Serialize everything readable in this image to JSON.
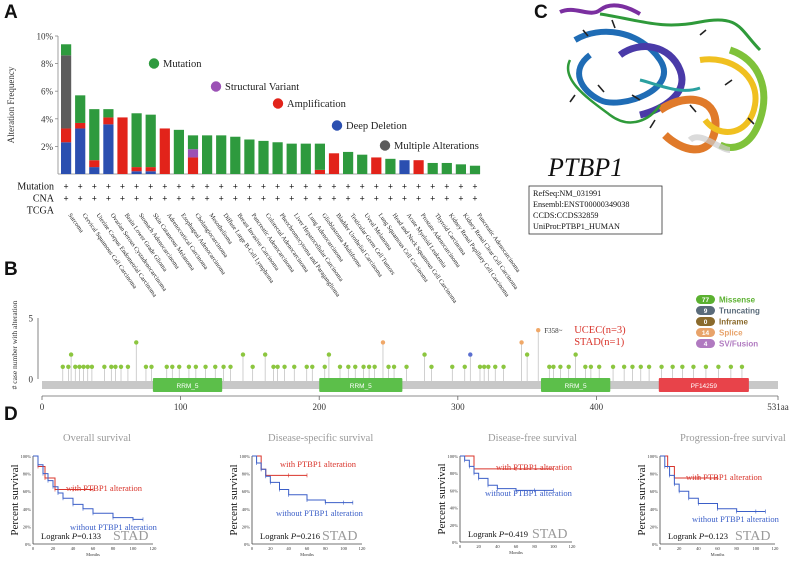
{
  "panels": {
    "a": "A",
    "b": "B",
    "c": "C",
    "d": "D"
  },
  "colors": {
    "mutation": "#2e9a3e",
    "structural_variant": "#9b51b5",
    "amplification": "#e2231a",
    "deep_deletion": "#2b4fb0",
    "multiple": "#5c5c5c",
    "km_with": "#d9342b",
    "km_without": "#3b5fc8"
  },
  "chart_data": [
    {
      "type": "bar",
      "stacked": true,
      "title": "",
      "ylabel": "Alteration Frequency",
      "ylim": [
        0,
        10
      ],
      "yticks": [
        "2%",
        "4%",
        "6%",
        "8%",
        "10%"
      ],
      "ytick_values": [
        2,
        4,
        6,
        8,
        10
      ],
      "row_labels": [
        "Mutation",
        "CNA",
        "TCGA"
      ],
      "row_marker": "+",
      "categories": [
        "Sarcoma",
        "Cervical Squamous Cell Carcinoma",
        "Uterine Corpus Endometrial Carcinoma",
        "Ovarian Serous Cystadenocarcinoma",
        "Brain Lower Grade Glioma",
        "Stomach Adenocarcinoma",
        "Skin Cutaneous Melanoma",
        "Adrenocortical Carcinoma",
        "Esophageal Adenocarcinoma",
        "Cholangiocarcinoma",
        "Mesothelioma",
        "Diffuse Large B-Cell Lymphoma",
        "Breast Invasive Carcinoma",
        "Pancreatic Adenocarcinoma",
        "Colorectal Adenocarcinoma",
        "Pheochromocytoma and Paraganglioma",
        "Liver Hepatocellular Carcinoma",
        "Lung Adenocarcinoma",
        "Glioblastoma Multiforme",
        "Bladder Urothelial Carcinoma",
        "Testicular Germ Cell Tumors",
        "Uveal Melanoma",
        "Lung Squamous Cell Carcinoma",
        "Head and Neck Squamous Cell Carcinoma",
        "Acute Myeloid Leukemia",
        "Prostate Adenocarcinoma",
        "Thyroid Carcinoma",
        "Kidney Renal Papillary Cell Carcinoma",
        "Kidney Renal Clear Cell Carcinoma",
        "Pancreatic Adenocarcinoma"
      ],
      "series": [
        {
          "name": "Deep Deletion",
          "values": [
            2.3,
            3.3,
            0.5,
            3.6,
            0,
            0.2,
            0.2,
            0,
            0,
            0,
            0,
            0,
            0,
            0,
            0,
            0,
            0,
            0,
            0,
            0,
            0,
            0,
            0,
            0,
            1.0,
            0,
            0,
            0,
            0,
            0
          ]
        },
        {
          "name": "Amplification",
          "values": [
            1.0,
            0.4,
            0.5,
            0.5,
            4.1,
            0.3,
            0.3,
            3.3,
            0,
            1.2,
            0,
            0,
            0,
            0,
            0,
            0,
            0,
            0,
            0.3,
            1.5,
            0,
            0,
            1.2,
            0,
            0,
            1.0,
            0,
            0,
            0,
            0
          ]
        },
        {
          "name": "Multiple Alterations",
          "values": [
            5.3,
            0,
            0,
            0,
            0,
            0,
            0,
            0,
            0,
            0,
            0,
            0,
            0,
            0,
            0,
            0,
            0,
            0,
            0,
            0,
            0,
            0,
            0,
            0,
            0,
            0,
            0,
            0,
            0,
            0
          ]
        },
        {
          "name": "Structural Variant",
          "values": [
            0,
            0,
            0,
            0,
            0,
            0,
            0,
            0,
            0,
            0.6,
            0,
            0,
            0,
            0,
            0,
            0,
            0,
            0,
            0,
            0,
            0,
            0,
            0,
            0,
            0,
            0,
            0,
            0,
            0,
            0
          ]
        },
        {
          "name": "Mutation",
          "values": [
            0.8,
            2.0,
            3.7,
            0.6,
            0,
            3.9,
            3.8,
            0,
            3.2,
            1.0,
            2.8,
            2.8,
            2.7,
            2.5,
            2.4,
            2.3,
            2.2,
            2.2,
            1.9,
            0,
            1.6,
            1.4,
            0,
            1.1,
            0,
            0,
            0.8,
            0.8,
            0.7,
            0.6
          ]
        }
      ],
      "legend": [
        "Mutation",
        "Structural Variant",
        "Amplification",
        "Deep Deletion",
        "Multiple Alterations"
      ]
    },
    {
      "type": "scatter",
      "subtype": "lollipop",
      "ylabel": "# case number with alteration",
      "ylim": [
        0,
        5
      ],
      "yticks": [
        "0",
        "5"
      ],
      "xlim": [
        0,
        531
      ],
      "xticks": [
        "0",
        "100",
        "200",
        "300",
        "400",
        "531aa"
      ],
      "xtick_values": [
        0,
        100,
        200,
        300,
        400,
        531
      ],
      "domains": [
        {
          "label": "RRM_5",
          "start": 80,
          "end": 130
        },
        {
          "label": "RRM_5",
          "start": 200,
          "end": 260
        },
        {
          "label": "RRM_5",
          "start": 360,
          "end": 410
        },
        {
          "label": "PF14259",
          "start": 445,
          "end": 510
        }
      ],
      "hotspot": {
        "label": "F358~",
        "position": 358,
        "count": 4,
        "annotation": [
          "UCEC(n=3)",
          "STAD(n=1)"
        ]
      },
      "stems": [
        {
          "pos": 15,
          "h": 1,
          "c": "g"
        },
        {
          "pos": 19,
          "h": 1,
          "c": "g"
        },
        {
          "pos": 21,
          "h": 2,
          "c": "g"
        },
        {
          "pos": 24,
          "h": 1,
          "c": "g"
        },
        {
          "pos": 27,
          "h": 1,
          "c": "g"
        },
        {
          "pos": 30,
          "h": 1,
          "c": "g"
        },
        {
          "pos": 33,
          "h": 1,
          "c": "g"
        },
        {
          "pos": 36,
          "h": 1,
          "c": "g"
        },
        {
          "pos": 45,
          "h": 1,
          "c": "g"
        },
        {
          "pos": 50,
          "h": 1,
          "c": "g"
        },
        {
          "pos": 53,
          "h": 1,
          "c": "g"
        },
        {
          "pos": 57,
          "h": 1,
          "c": "g"
        },
        {
          "pos": 62,
          "h": 1,
          "c": "g"
        },
        {
          "pos": 68,
          "h": 3,
          "c": "g"
        },
        {
          "pos": 75,
          "h": 1,
          "c": "g"
        },
        {
          "pos": 79,
          "h": 1,
          "c": "g"
        },
        {
          "pos": 90,
          "h": 1,
          "c": "g"
        },
        {
          "pos": 94,
          "h": 1,
          "c": "g"
        },
        {
          "pos": 99,
          "h": 1,
          "c": "g"
        },
        {
          "pos": 106,
          "h": 1,
          "c": "g"
        },
        {
          "pos": 111,
          "h": 1,
          "c": "g"
        },
        {
          "pos": 118,
          "h": 1,
          "c": "g"
        },
        {
          "pos": 125,
          "h": 1,
          "c": "g"
        },
        {
          "pos": 131,
          "h": 1,
          "c": "g"
        },
        {
          "pos": 136,
          "h": 1,
          "c": "g"
        },
        {
          "pos": 145,
          "h": 2,
          "c": "g"
        },
        {
          "pos": 152,
          "h": 1,
          "c": "g"
        },
        {
          "pos": 161,
          "h": 2,
          "c": "g"
        },
        {
          "pos": 167,
          "h": 1,
          "c": "g"
        },
        {
          "pos": 170,
          "h": 1,
          "c": "g"
        },
        {
          "pos": 175,
          "h": 1,
          "c": "g"
        },
        {
          "pos": 182,
          "h": 1,
          "c": "g"
        },
        {
          "pos": 191,
          "h": 1,
          "c": "g"
        },
        {
          "pos": 195,
          "h": 1,
          "c": "g"
        },
        {
          "pos": 204,
          "h": 1,
          "c": "g"
        },
        {
          "pos": 207,
          "h": 2,
          "c": "g"
        },
        {
          "pos": 215,
          "h": 1,
          "c": "g"
        },
        {
          "pos": 221,
          "h": 1,
          "c": "g"
        },
        {
          "pos": 226,
          "h": 1,
          "c": "g"
        },
        {
          "pos": 232,
          "h": 1,
          "c": "g"
        },
        {
          "pos": 236,
          "h": 1,
          "c": "g"
        },
        {
          "pos": 240,
          "h": 1,
          "c": "g"
        },
        {
          "pos": 246,
          "h": 3,
          "c": "o"
        },
        {
          "pos": 250,
          "h": 1,
          "c": "g"
        },
        {
          "pos": 254,
          "h": 1,
          "c": "g"
        },
        {
          "pos": 263,
          "h": 1,
          "c": "g"
        },
        {
          "pos": 276,
          "h": 2,
          "c": "g"
        },
        {
          "pos": 281,
          "h": 1,
          "c": "g"
        },
        {
          "pos": 296,
          "h": 1,
          "c": "g"
        },
        {
          "pos": 305,
          "h": 1,
          "c": "g"
        },
        {
          "pos": 309,
          "h": 2,
          "c": "b"
        },
        {
          "pos": 316,
          "h": 1,
          "c": "g"
        },
        {
          "pos": 319,
          "h": 1,
          "c": "g"
        },
        {
          "pos": 322,
          "h": 1,
          "c": "g"
        },
        {
          "pos": 327,
          "h": 1,
          "c": "g"
        },
        {
          "pos": 333,
          "h": 1,
          "c": "g"
        },
        {
          "pos": 346,
          "h": 3,
          "c": "o"
        },
        {
          "pos": 350,
          "h": 2,
          "c": "g"
        },
        {
          "pos": 358,
          "h": 4,
          "c": "o"
        },
        {
          "pos": 366,
          "h": 1,
          "c": "g"
        },
        {
          "pos": 369,
          "h": 1,
          "c": "g"
        },
        {
          "pos": 374,
          "h": 1,
          "c": "g"
        },
        {
          "pos": 380,
          "h": 1,
          "c": "g"
        },
        {
          "pos": 385,
          "h": 2,
          "c": "g"
        },
        {
          "pos": 392,
          "h": 1,
          "c": "g"
        },
        {
          "pos": 396,
          "h": 1,
          "c": "g"
        },
        {
          "pos": 402,
          "h": 1,
          "c": "g"
        },
        {
          "pos": 412,
          "h": 1,
          "c": "g"
        },
        {
          "pos": 420,
          "h": 1,
          "c": "g"
        },
        {
          "pos": 426,
          "h": 1,
          "c": "g"
        },
        {
          "pos": 432,
          "h": 1,
          "c": "g"
        },
        {
          "pos": 438,
          "h": 1,
          "c": "g"
        },
        {
          "pos": 447,
          "h": 1,
          "c": "g"
        },
        {
          "pos": 455,
          "h": 1,
          "c": "g"
        },
        {
          "pos": 462,
          "h": 1,
          "c": "g"
        },
        {
          "pos": 470,
          "h": 1,
          "c": "g"
        },
        {
          "pos": 479,
          "h": 1,
          "c": "g"
        },
        {
          "pos": 488,
          "h": 1,
          "c": "g"
        },
        {
          "pos": 497,
          "h": 1,
          "c": "g"
        },
        {
          "pos": 505,
          "h": 1,
          "c": "g"
        }
      ],
      "legend": [
        {
          "count": "77",
          "label": "Missense",
          "color": "#5bb130"
        },
        {
          "count": "9",
          "label": "Truncating",
          "color": "#5a6b7a"
        },
        {
          "count": "0",
          "label": "Inframe",
          "color": "#8a6a2c"
        },
        {
          "count": "14",
          "label": "Splice",
          "color": "#e8a36a"
        },
        {
          "count": "4",
          "label": "SV/Fusion",
          "color": "#b07ac0"
        }
      ]
    },
    {
      "type": "line",
      "subtype": "kaplan-meier",
      "title": "Overall survival",
      "ylabel": "Percent survival",
      "xlabel": "Months",
      "yticks": [
        "0%",
        "20%",
        "40%",
        "60%",
        "80%",
        "100%"
      ],
      "xticks": [
        "0",
        "20",
        "40",
        "60",
        "80",
        "100",
        "120"
      ],
      "series": [
        {
          "name": "with PTBP1 alteration",
          "x": [
            0,
            5,
            12,
            22,
            40,
            60
          ],
          "y": [
            100,
            88,
            75,
            62,
            62,
            62
          ]
        },
        {
          "name": "without PTBP1 alteration",
          "x": [
            0,
            5,
            10,
            15,
            20,
            25,
            30,
            40,
            50,
            60,
            80,
            100,
            110
          ],
          "y": [
            100,
            90,
            80,
            72,
            65,
            58,
            52,
            45,
            40,
            35,
            30,
            28,
            28
          ]
        }
      ],
      "logrank_label": "Logrank",
      "p_label": "P",
      "p_value": "=0.133",
      "cohort": "STAD"
    },
    {
      "type": "line",
      "subtype": "kaplan-meier",
      "title": "Disease-specific survival",
      "ylabel": "Percent survival",
      "xlabel": "Months",
      "yticks": [
        "0%",
        "20%",
        "40%",
        "60%",
        "80%",
        "100%"
      ],
      "xticks": [
        "0",
        "20",
        "40",
        "60",
        "80",
        "100",
        "120"
      ],
      "series": [
        {
          "name": "with PTBP1 alteration",
          "x": [
            0,
            10,
            15,
            40,
            60
          ],
          "y": [
            100,
            85,
            78,
            78,
            78
          ]
        },
        {
          "name": "without PTBP1 alteration",
          "x": [
            0,
            5,
            10,
            15,
            20,
            30,
            40,
            60,
            80,
            100,
            110
          ],
          "y": [
            100,
            92,
            85,
            77,
            70,
            62,
            56,
            50,
            47,
            47,
            47
          ]
        }
      ],
      "logrank_label": "Logrank",
      "p_label": "P",
      "p_value": "=0.216",
      "cohort": "STAD"
    },
    {
      "type": "line",
      "subtype": "kaplan-meier",
      "title": "Disease-free survival",
      "ylabel": "Percent survival",
      "xlabel": "Months",
      "yticks": [
        "0%",
        "20%",
        "40%",
        "60%",
        "80%",
        "100%"
      ],
      "xticks": [
        "0",
        "20",
        "40",
        "60",
        "80",
        "100",
        "120"
      ],
      "series": [
        {
          "name": "with PTBP1 alteration",
          "x": [
            0,
            15,
            60,
            100
          ],
          "y": [
            100,
            85,
            85,
            85
          ]
        },
        {
          "name": "without PTBP1 alteration",
          "x": [
            0,
            5,
            10,
            15,
            20,
            30,
            40,
            60,
            80,
            100
          ],
          "y": [
            100,
            95,
            88,
            80,
            74,
            66,
            62,
            60,
            60,
            60
          ]
        }
      ],
      "logrank_label": "Logrank",
      "p_label": "P",
      "p_value": "=0.419",
      "cohort": "STAD"
    },
    {
      "type": "line",
      "subtype": "kaplan-meier",
      "title": "Progression-free survival",
      "ylabel": "Percent survival",
      "xlabel": "Months",
      "yticks": [
        "0%",
        "20%",
        "40%",
        "60%",
        "80%",
        "100%"
      ],
      "xticks": [
        "0",
        "20",
        "40",
        "60",
        "80",
        "100",
        "120"
      ],
      "series": [
        {
          "name": "with PTBP1 alteration",
          "x": [
            0,
            8,
            15,
            40,
            60
          ],
          "y": [
            100,
            88,
            75,
            75,
            75
          ]
        },
        {
          "name": "without PTBP1 alteration",
          "x": [
            0,
            5,
            10,
            15,
            20,
            30,
            40,
            60,
            80,
            100,
            110
          ],
          "y": [
            100,
            88,
            78,
            68,
            60,
            52,
            46,
            40,
            37,
            37,
            37
          ]
        }
      ],
      "logrank_label": "Logrank",
      "p_label": "P",
      "p_value": "=0.123",
      "cohort": "STAD"
    }
  ],
  "gene": {
    "name": "PTBP1",
    "refseq": "RefSeq:NM_031991",
    "ensembl": "Ensembl:ENST00000349038",
    "ccds": "CCDS:CCDS32859",
    "uniprot": "UniProt:PTBP1_HUMAN"
  },
  "structure": {
    "icons": [
      "protein-ribbon-structure"
    ]
  }
}
